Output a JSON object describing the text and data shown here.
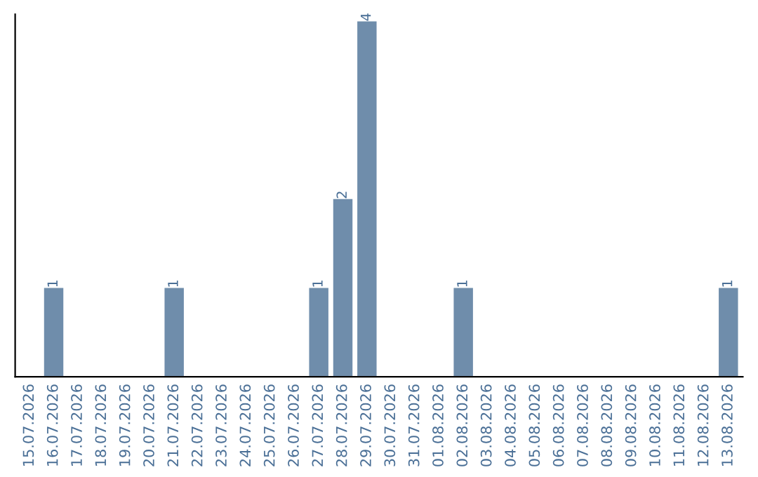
{
  "chart_data": {
    "type": "bar",
    "categories": [
      "15.07.2026",
      "16.07.2026",
      "17.07.2026",
      "18.07.2026",
      "19.07.2026",
      "20.07.2026",
      "21.07.2026",
      "22.07.2026",
      "23.07.2026",
      "24.07.2026",
      "25.07.2026",
      "26.07.2026",
      "27.07.2026",
      "28.07.2026",
      "29.07.2026",
      "30.07.2026",
      "31.07.2026",
      "01.08.2026",
      "02.08.2026",
      "03.08.2026",
      "04.08.2026",
      "05.08.2026",
      "06.08.2026",
      "07.08.2026",
      "08.08.2026",
      "09.08.2026",
      "10.08.2026",
      "11.08.2026",
      "12.08.2026",
      "13.08.2026"
    ],
    "values": [
      0,
      1,
      0,
      0,
      0,
      0,
      1,
      0,
      0,
      0,
      0,
      0,
      1,
      2,
      4,
      0,
      0,
      0,
      1,
      0,
      0,
      0,
      0,
      0,
      0,
      0,
      0,
      0,
      0,
      1
    ],
    "value_labels": [
      null,
      "1",
      null,
      null,
      null,
      null,
      "1",
      null,
      null,
      null,
      null,
      null,
      "1",
      "2",
      "4",
      null,
      null,
      null,
      "1",
      null,
      null,
      null,
      null,
      null,
      null,
      null,
      null,
      null,
      null,
      "1"
    ],
    "color": "#6f8dab",
    "tick_labels": "x",
    "grid": false,
    "legend": false
  }
}
